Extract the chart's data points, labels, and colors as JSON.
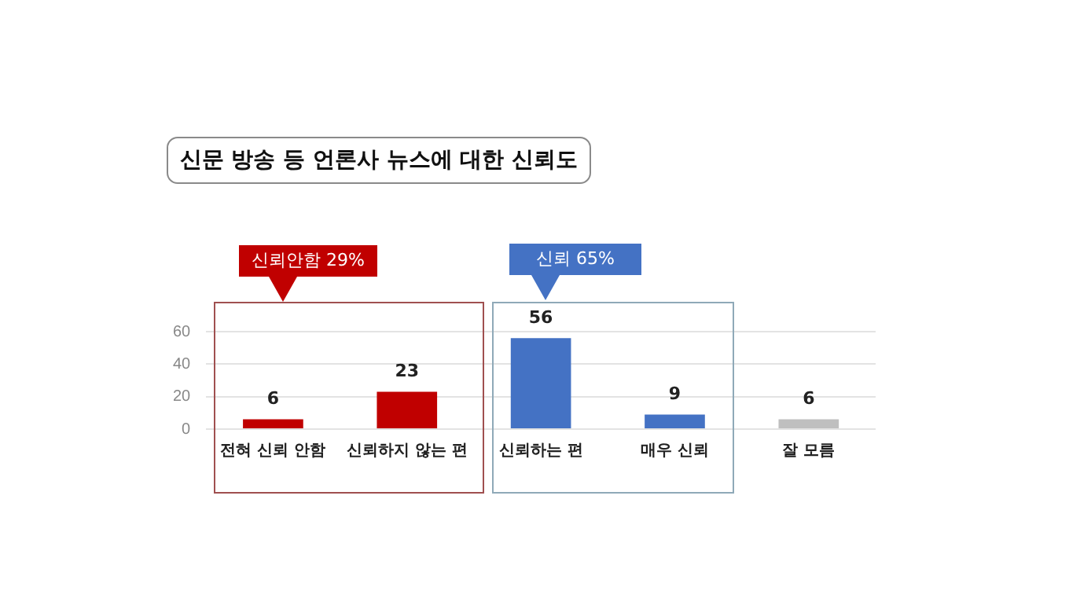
{
  "chart_data": {
    "type": "bar",
    "title": "신문 방송 등 언론사 뉴스에 대한 신뢰도",
    "categories": [
      "전혀 신뢰 안함",
      "신뢰하지 않는 편",
      "신뢰하는 편",
      "매우 신뢰",
      "잘 모름"
    ],
    "values": [
      6,
      23,
      56,
      9,
      6
    ],
    "colors": [
      "#c00000",
      "#c00000",
      "#4472c4",
      "#4472c4",
      "#bfbfbf"
    ],
    "ylim": [
      0,
      60
    ],
    "yticks": [
      0,
      20,
      40,
      60
    ],
    "grid": "y",
    "data_labels": true,
    "annotations": [
      "신뢰안함 29%",
      "신뢰 65%"
    ]
  }
}
